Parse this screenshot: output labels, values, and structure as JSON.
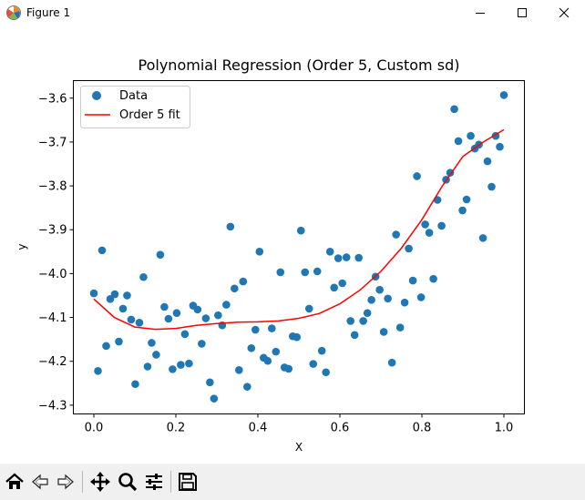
{
  "window": {
    "title": "Figure 1",
    "icons": {
      "app": "matplotlib-figure-icon",
      "minimize": "minimize-icon",
      "maximize": "maximize-icon",
      "close": "close-icon"
    }
  },
  "toolbar": {
    "buttons": [
      {
        "name": "home-button",
        "icon": "home-icon"
      },
      {
        "name": "back-button",
        "icon": "back-arrow-icon"
      },
      {
        "name": "forward-button",
        "icon": "forward-arrow-icon"
      },
      {
        "name": "pan-button",
        "icon": "move-icon"
      },
      {
        "name": "zoom-button",
        "icon": "zoom-icon"
      },
      {
        "name": "configure-subplots-button",
        "icon": "sliders-icon"
      },
      {
        "name": "save-button",
        "icon": "save-icon"
      }
    ]
  },
  "chart_data": {
    "type": "scatter",
    "title": "Polynomial Regression (Order 5, Custom sd)",
    "xlabel": "X",
    "ylabel": "y",
    "xlim": [
      -0.05,
      1.05
    ],
    "ylim": [
      -4.32,
      -3.56
    ],
    "xticks": [
      0.0,
      0.2,
      0.4,
      0.6,
      0.8,
      1.0
    ],
    "xtick_labels": [
      "0.0",
      "0.2",
      "0.4",
      "0.6",
      "0.8",
      "1.0"
    ],
    "yticks": [
      -4.3,
      -4.2,
      -4.1,
      -4.0,
      -3.9,
      -3.8,
      -3.7,
      -3.6
    ],
    "ytick_labels": [
      "−4.3",
      "−4.2",
      "−4.1",
      "−4.0",
      "−3.9",
      "−3.8",
      "−3.7",
      "−3.6"
    ],
    "legend": {
      "position": "upper-left",
      "entries": [
        {
          "label": "Data",
          "marker": "circle",
          "color": "#1f77b4"
        },
        {
          "label": "Order 5 fit",
          "marker": "line",
          "color": "#ff0000"
        }
      ]
    },
    "series": [
      {
        "name": "Data",
        "kind": "scatter",
        "color": "#1f77b4",
        "points": [
          [
            0.0,
            -4.045
          ],
          [
            0.01,
            -4.222
          ],
          [
            0.02,
            -3.947
          ],
          [
            0.03,
            -4.165
          ],
          [
            0.04,
            -4.058
          ],
          [
            0.051,
            -4.047
          ],
          [
            0.061,
            -4.155
          ],
          [
            0.071,
            -4.08
          ],
          [
            0.081,
            -4.05
          ],
          [
            0.091,
            -4.105
          ],
          [
            0.101,
            -4.252
          ],
          [
            0.111,
            -4.112
          ],
          [
            0.121,
            -4.008
          ],
          [
            0.131,
            -4.212
          ],
          [
            0.141,
            -4.158
          ],
          [
            0.152,
            -4.185
          ],
          [
            0.162,
            -3.957
          ],
          [
            0.172,
            -4.076
          ],
          [
            0.182,
            -4.103
          ],
          [
            0.192,
            -4.218
          ],
          [
            0.202,
            -4.09
          ],
          [
            0.212,
            -4.208
          ],
          [
            0.222,
            -4.138
          ],
          [
            0.232,
            -4.205
          ],
          [
            0.242,
            -4.073
          ],
          [
            0.253,
            -4.082
          ],
          [
            0.263,
            -4.16
          ],
          [
            0.273,
            -4.102
          ],
          [
            0.283,
            -4.248
          ],
          [
            0.293,
            -4.285
          ],
          [
            0.303,
            -4.095
          ],
          [
            0.313,
            -4.118
          ],
          [
            0.323,
            -4.071
          ],
          [
            0.333,
            -3.893
          ],
          [
            0.343,
            -4.034
          ],
          [
            0.354,
            -4.22
          ],
          [
            0.364,
            -4.018
          ],
          [
            0.374,
            -4.258
          ],
          [
            0.384,
            -4.17
          ],
          [
            0.394,
            -4.128
          ],
          [
            0.404,
            -3.95
          ],
          [
            0.414,
            -4.192
          ],
          [
            0.424,
            -4.199
          ],
          [
            0.434,
            -4.125
          ],
          [
            0.444,
            -4.178
          ],
          [
            0.455,
            -3.997
          ],
          [
            0.465,
            -4.214
          ],
          [
            0.475,
            -4.217
          ],
          [
            0.485,
            -4.143
          ],
          [
            0.495,
            -4.145
          ],
          [
            0.505,
            -3.902
          ],
          [
            0.515,
            -3.997
          ],
          [
            0.525,
            -4.08
          ],
          [
            0.535,
            -4.206
          ],
          [
            0.545,
            -3.995
          ],
          [
            0.556,
            -4.176
          ],
          [
            0.566,
            -4.225
          ],
          [
            0.576,
            -3.95
          ],
          [
            0.586,
            -4.032
          ],
          [
            0.596,
            -3.965
          ],
          [
            0.606,
            -4.022
          ],
          [
            0.616,
            -3.963
          ],
          [
            0.626,
            -4.108
          ],
          [
            0.636,
            -4.14
          ],
          [
            0.646,
            -3.964
          ],
          [
            0.657,
            -4.108
          ],
          [
            0.667,
            -4.09
          ],
          [
            0.677,
            -4.06
          ],
          [
            0.687,
            -4.007
          ],
          [
            0.697,
            -4.037
          ],
          [
            0.707,
            -4.133
          ],
          [
            0.717,
            -4.057
          ],
          [
            0.727,
            -4.203
          ],
          [
            0.737,
            -3.911
          ],
          [
            0.747,
            -4.123
          ],
          [
            0.758,
            -4.066
          ],
          [
            0.768,
            -3.943
          ],
          [
            0.778,
            -4.016
          ],
          [
            0.788,
            -3.778
          ],
          [
            0.798,
            -4.054
          ],
          [
            0.808,
            -3.888
          ],
          [
            0.818,
            -3.907
          ],
          [
            0.828,
            -4.012
          ],
          [
            0.838,
            -3.832
          ],
          [
            0.848,
            -3.891
          ],
          [
            0.859,
            -3.786
          ],
          [
            0.869,
            -3.77
          ],
          [
            0.879,
            -3.625
          ],
          [
            0.889,
            -3.698
          ],
          [
            0.899,
            -3.856
          ],
          [
            0.909,
            -3.831
          ],
          [
            0.919,
            -3.686
          ],
          [
            0.929,
            -3.715
          ],
          [
            0.939,
            -3.706
          ],
          [
            0.949,
            -3.919
          ],
          [
            0.96,
            -3.744
          ],
          [
            0.97,
            -3.802
          ],
          [
            0.98,
            -3.686
          ],
          [
            0.99,
            -3.711
          ],
          [
            1.0,
            -3.593
          ]
        ]
      },
      {
        "name": "Order 5 fit",
        "kind": "line",
        "color": "#ff0000",
        "points": [
          [
            0.0,
            -4.058
          ],
          [
            0.05,
            -4.1
          ],
          [
            0.1,
            -4.122
          ],
          [
            0.15,
            -4.127
          ],
          [
            0.2,
            -4.125
          ],
          [
            0.25,
            -4.118
          ],
          [
            0.3,
            -4.114
          ],
          [
            0.35,
            -4.111
          ],
          [
            0.4,
            -4.11
          ],
          [
            0.45,
            -4.108
          ],
          [
            0.5,
            -4.102
          ],
          [
            0.55,
            -4.091
          ],
          [
            0.6,
            -4.069
          ],
          [
            0.65,
            -4.037
          ],
          [
            0.7,
            -3.995
          ],
          [
            0.75,
            -3.942
          ],
          [
            0.8,
            -3.877
          ],
          [
            0.85,
            -3.8
          ],
          [
            0.9,
            -3.733
          ],
          [
            0.95,
            -3.7
          ],
          [
            1.0,
            -3.672
          ]
        ]
      }
    ]
  }
}
